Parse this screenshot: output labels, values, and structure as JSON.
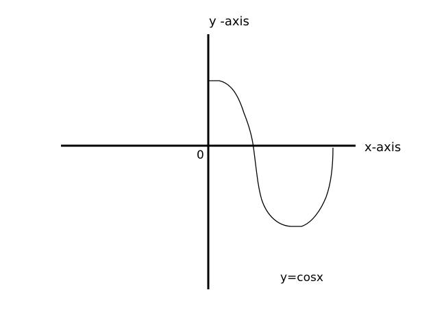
{
  "diagram": {
    "y_axis_label": "y -axis",
    "x_axis_label": "x-axis",
    "origin_label": "0",
    "curve_label": "y=cosx",
    "colors": {
      "background": "#ffffff",
      "stroke": "#000000"
    }
  }
}
